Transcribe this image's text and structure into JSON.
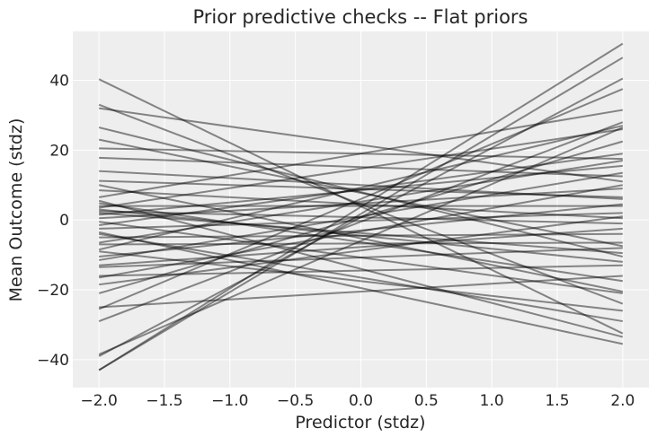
{
  "chart_data": {
    "type": "line",
    "title": "Prior predictive checks -- Flat priors",
    "xlabel": "Predictor (stdz)",
    "ylabel": "Mean Outcome (stdz)",
    "xlim": [
      -2.2,
      2.2
    ],
    "ylim": [
      -48,
      54
    ],
    "xticks": [
      -2.0,
      -1.5,
      -1.0,
      -0.5,
      0.0,
      0.5,
      1.0,
      1.5,
      2.0
    ],
    "xtick_labels": [
      "−2.0",
      "−1.5",
      "−1.0",
      "−0.5",
      "0.0",
      "0.5",
      "1.0",
      "1.5",
      "2.0"
    ],
    "yticks": [
      -40,
      -20,
      0,
      20,
      40
    ],
    "ytick_labels": [
      "−40",
      "−20",
      "0",
      "20",
      "40"
    ],
    "grid": true,
    "legend": false,
    "line_color": "#000000",
    "line_alpha": 0.45,
    "background_color": "#eeeeee",
    "x": [
      -2.0,
      2.0
    ],
    "series": [
      {
        "values": [
          40.3,
          -32.5
        ]
      },
      {
        "values": [
          33.0,
          -24.0
        ]
      },
      {
        "values": [
          32.0,
          11.0
        ]
      },
      {
        "values": [
          26.5,
          -10.5
        ]
      },
      {
        "values": [
          23.0,
          -7.5
        ]
      },
      {
        "values": [
          20.5,
          17.5
        ]
      },
      {
        "values": [
          17.8,
          12.5
        ]
      },
      {
        "values": [
          11.2,
          6.5
        ]
      },
      {
        "values": [
          8.5,
          0.5
        ]
      },
      {
        "values": [
          5.5,
          -33.5
        ]
      },
      {
        "values": [
          4.8,
          -17.5
        ]
      },
      {
        "values": [
          3.5,
          26.0
        ]
      },
      {
        "values": [
          2.5,
          -1.0
        ]
      },
      {
        "values": [
          2.0,
          -9.5
        ]
      },
      {
        "values": [
          1.5,
          15.5
        ]
      },
      {
        "values": [
          -0.5,
          -21.0
        ]
      },
      {
        "values": [
          -2.5,
          2.0
        ]
      },
      {
        "values": [
          -6.5,
          17.0
        ]
      },
      {
        "values": [
          -7.0,
          -6.5
        ]
      },
      {
        "values": [
          -10.5,
          4.5
        ]
      },
      {
        "values": [
          -11.5,
          13.5
        ]
      },
      {
        "values": [
          -13.0,
          -2.5
        ]
      },
      {
        "values": [
          -16.5,
          10.0
        ]
      },
      {
        "values": [
          -16.0,
          -13.0
        ]
      },
      {
        "values": [
          -21.0,
          22.5
        ]
      },
      {
        "values": [
          -25.0,
          -16.0
        ]
      },
      {
        "values": [
          -25.5,
          37.5
        ]
      },
      {
        "values": [
          -29.0,
          28.0
        ]
      },
      {
        "values": [
          -38.5,
          26.5
        ]
      },
      {
        "values": [
          -39.0,
          40.5
        ]
      },
      {
        "values": [
          -43.0,
          46.5
        ]
      },
      {
        "values": [
          -43.0,
          50.5
        ]
      },
      {
        "values": [
          -3.5,
          -35.5
        ]
      },
      {
        "values": [
          -9.0,
          -26.0
        ]
      },
      {
        "values": [
          6.5,
          31.5
        ]
      },
      {
        "values": [
          -1.5,
          19.0
        ]
      },
      {
        "values": [
          -13.5,
          -8.0
        ]
      },
      {
        "values": [
          10.0,
          -20.5
        ]
      },
      {
        "values": [
          0.5,
          9.0
        ]
      },
      {
        "values": [
          -5.0,
          -4.0
        ]
      },
      {
        "values": [
          3.0,
          -12.0
        ]
      },
      {
        "values": [
          -18.5,
          1.0
        ]
      },
      {
        "values": [
          14.0,
          6.0
        ]
      },
      {
        "values": [
          -8.5,
          27.0
        ]
      },
      {
        "values": [
          4.0,
          4.0
        ]
      },
      {
        "values": [
          -4.0,
          -29.0
        ]
      }
    ]
  }
}
